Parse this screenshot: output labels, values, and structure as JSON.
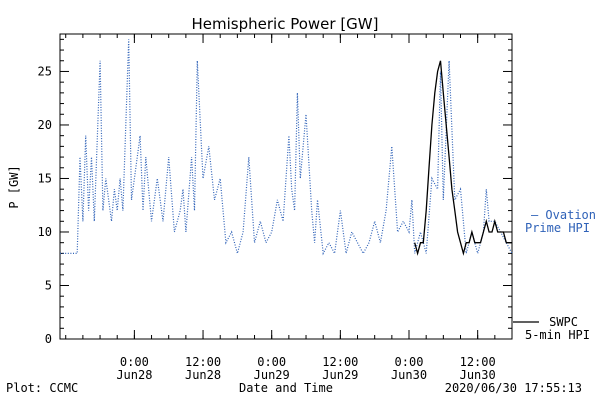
{
  "chart_data": {
    "type": "line",
    "title": "Hemispheric Power [GW]",
    "xlabel": "Date and Time",
    "ylabel": "P [GW]",
    "x_range": [
      "2020-06-27 11:00",
      "2020-06-30 18:00"
    ],
    "ylim": [
      0,
      28.5
    ],
    "y_ticks": [
      0,
      5,
      10,
      15,
      20,
      25
    ],
    "x_ticks": [
      {
        "x": "2020-06-28 00:00",
        "line1": "0:00",
        "line2": "Jun28"
      },
      {
        "x": "2020-06-28 12:00",
        "line1": "12:00",
        "line2": "Jun28"
      },
      {
        "x": "2020-06-29 00:00",
        "line1": "0:00",
        "line2": "Jun29"
      },
      {
        "x": "2020-06-29 12:00",
        "line1": "12:00",
        "line2": "Jun29"
      },
      {
        "x": "2020-06-30 00:00",
        "line1": "0:00",
        "line2": "Jun30"
      },
      {
        "x": "2020-06-30 12:00",
        "line1": "12:00",
        "line2": "Jun30"
      }
    ],
    "grid": false,
    "legend_placement": "right",
    "series": [
      {
        "name": "Ovation Prime HPI",
        "legend_lines": [
          "— Ovation",
          "Prime HPI"
        ],
        "style": "dotted",
        "color": "#2f62b8",
        "x": [
          "2020-06-27 11:00",
          "2020-06-27 14:00",
          "2020-06-27 14:30",
          "2020-06-27 15:00",
          "2020-06-27 15:30",
          "2020-06-27 16:00",
          "2020-06-27 16:30",
          "2020-06-27 17:00",
          "2020-06-27 18:00",
          "2020-06-27 18:30",
          "2020-06-27 19:00",
          "2020-06-27 20:00",
          "2020-06-27 20:30",
          "2020-06-27 21:00",
          "2020-06-27 21:30",
          "2020-06-27 22:00",
          "2020-06-27 23:00",
          "2020-06-27 23:30",
          "2020-06-28 00:00",
          "2020-06-28 01:00",
          "2020-06-28 01:30",
          "2020-06-28 02:00",
          "2020-06-28 03:00",
          "2020-06-28 04:00",
          "2020-06-28 05:00",
          "2020-06-28 06:00",
          "2020-06-28 07:00",
          "2020-06-28 08:00",
          "2020-06-28 08:30",
          "2020-06-28 09:00",
          "2020-06-28 10:00",
          "2020-06-28 10:30",
          "2020-06-28 11:00",
          "2020-06-28 12:00",
          "2020-06-28 13:00",
          "2020-06-28 14:00",
          "2020-06-28 15:00",
          "2020-06-28 16:00",
          "2020-06-28 17:00",
          "2020-06-28 18:00",
          "2020-06-28 19:00",
          "2020-06-28 20:00",
          "2020-06-28 21:00",
          "2020-06-28 22:00",
          "2020-06-28 23:00",
          "2020-06-29 00:00",
          "2020-06-29 01:00",
          "2020-06-29 02:00",
          "2020-06-29 03:00",
          "2020-06-29 03:30",
          "2020-06-29 04:00",
          "2020-06-29 04:30",
          "2020-06-29 05:00",
          "2020-06-29 06:00",
          "2020-06-29 07:00",
          "2020-06-29 07:30",
          "2020-06-29 08:00",
          "2020-06-29 09:00",
          "2020-06-29 10:00",
          "2020-06-29 11:00",
          "2020-06-29 12:00",
          "2020-06-29 13:00",
          "2020-06-29 14:00",
          "2020-06-29 15:00",
          "2020-06-29 16:00",
          "2020-06-29 17:00",
          "2020-06-29 18:00",
          "2020-06-29 19:00",
          "2020-06-29 20:00",
          "2020-06-29 21:00",
          "2020-06-29 22:00",
          "2020-06-29 23:00",
          "2020-06-30 00:00",
          "2020-06-30 00:30",
          "2020-06-30 01:00",
          "2020-06-30 01:30",
          "2020-06-30 02:00",
          "2020-06-30 03:00",
          "2020-06-30 04:00",
          "2020-06-30 05:00",
          "2020-06-30 05:30",
          "2020-06-30 06:00",
          "2020-06-30 07:00",
          "2020-06-30 08:00",
          "2020-06-30 09:00",
          "2020-06-30 10:00",
          "2020-06-30 11:00",
          "2020-06-30 12:00",
          "2020-06-30 13:00",
          "2020-06-30 13:30",
          "2020-06-30 14:00",
          "2020-06-30 15:00",
          "2020-06-30 16:00",
          "2020-06-30 17:00",
          "2020-06-30 18:00"
        ],
        "values": [
          8,
          8,
          17,
          11,
          19,
          12,
          17,
          11,
          26,
          12,
          15,
          11,
          14,
          12,
          15,
          12,
          28,
          13,
          15,
          19,
          12,
          17,
          11,
          15,
          11,
          17,
          10,
          12,
          14,
          10,
          17,
          12,
          26,
          15,
          18,
          13,
          15,
          9,
          10,
          8,
          10,
          17,
          9,
          11,
          9,
          10,
          13,
          11,
          19,
          14,
          12,
          23,
          15,
          21,
          12,
          9,
          13,
          8,
          9,
          8,
          12,
          8,
          10,
          9,
          8,
          9,
          11,
          9,
          12,
          18,
          10,
          11,
          10,
          13,
          8,
          9,
          10,
          8,
          15,
          14,
          25,
          13,
          26,
          13,
          14,
          8,
          10,
          8,
          10,
          14,
          11,
          11,
          10,
          9,
          8
        ]
      },
      {
        "name": "SWPC 5-min HPI",
        "legend_lines": [
          "SWPC",
          "5-min HPI"
        ],
        "style": "solid",
        "color": "#000000",
        "x": [
          "2020-06-30 01:00",
          "2020-06-30 01:30",
          "2020-06-30 02:00",
          "2020-06-30 02:30",
          "2020-06-30 03:00",
          "2020-06-30 03:30",
          "2020-06-30 04:00",
          "2020-06-30 04:30",
          "2020-06-30 05:00",
          "2020-06-30 05:30",
          "2020-06-30 06:00",
          "2020-06-30 06:30",
          "2020-06-30 07:00",
          "2020-06-30 07:30",
          "2020-06-30 08:00",
          "2020-06-30 08:30",
          "2020-06-30 09:00",
          "2020-06-30 09:30",
          "2020-06-30 10:00",
          "2020-06-30 10:30",
          "2020-06-30 11:00",
          "2020-06-30 11:30",
          "2020-06-30 12:00",
          "2020-06-30 12:30",
          "2020-06-30 13:00",
          "2020-06-30 13:30",
          "2020-06-30 14:00",
          "2020-06-30 14:30",
          "2020-06-30 15:00",
          "2020-06-30 15:30",
          "2020-06-30 16:00",
          "2020-06-30 16:30",
          "2020-06-30 17:00",
          "2020-06-30 17:30",
          "2020-06-30 18:00"
        ],
        "values": [
          9,
          8,
          9,
          9,
          12,
          16,
          20,
          23,
          25,
          26,
          23,
          20,
          17,
          14,
          12,
          10,
          9,
          8,
          9,
          9,
          10,
          9,
          9,
          9,
          10,
          11,
          10,
          10,
          11,
          10,
          10,
          10,
          9,
          9,
          9
        ]
      }
    ]
  },
  "footer": {
    "plot_credit": "Plot: CCMC",
    "timestamp": "2020/06/30 17:55:13"
  }
}
